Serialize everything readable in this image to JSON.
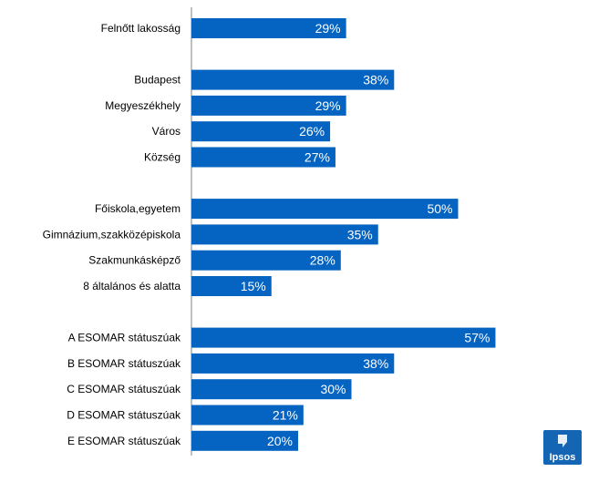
{
  "chart_data": {
    "type": "bar",
    "orientation": "horizontal",
    "groups": [
      [
        {
          "label": "Felnőtt lakosság",
          "value": 29
        }
      ],
      [
        {
          "label": "Budapest",
          "value": 38
        },
        {
          "label": "Megyeszékhely",
          "value": 29
        },
        {
          "label": "Város",
          "value": 26
        },
        {
          "label": "Község",
          "value": 27
        }
      ],
      [
        {
          "label": "Főiskola,egyetem",
          "value": 50
        },
        {
          "label": "Gimnázium,szakközépiskola",
          "value": 35
        },
        {
          "label": "Szakmunkásképző",
          "value": 28
        },
        {
          "label": "8 általános és alatta",
          "value": 15
        }
      ],
      [
        {
          "label": "A ESOMAR státuszúak",
          "value": 57
        },
        {
          "label": "B ESOMAR státuszúak",
          "value": 38
        },
        {
          "label": "C ESOMAR státuszúak",
          "value": 30
        },
        {
          "label": "D ESOMAR státuszúak",
          "value": 21
        },
        {
          "label": "E ESOMAR státuszúak",
          "value": 20
        }
      ]
    ],
    "value_suffix": "%",
    "bar_color": "#0563c1",
    "xlim": [
      0,
      100
    ],
    "grid": false,
    "legend": "none"
  },
  "logo": {
    "text": "Ipsos",
    "color": "#1565b5"
  }
}
